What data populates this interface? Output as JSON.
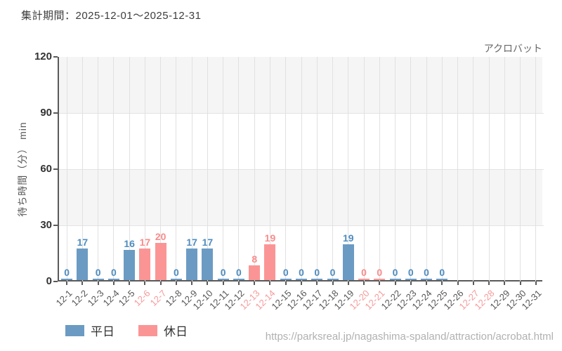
{
  "header": {
    "title": "集計期間：2025-12-01～2025-12-31",
    "attraction_label": "アクロバット"
  },
  "footer": {
    "url": "https://parksreal.jp/nagashima-spaland/attraction/acrobat.html"
  },
  "legend": {
    "items": [
      {
        "label": "平日",
        "type": "weekday"
      },
      {
        "label": "休日",
        "type": "holiday"
      }
    ]
  },
  "colors": {
    "weekday_bar": "#6b9bc3",
    "holiday_bar": "#fb9595",
    "weekday_value_label": "#4e8cbf",
    "holiday_value_label": "#f98b8b",
    "weekday_tick_label": "#555555",
    "holiday_tick_label": "#f59a9a",
    "axis": "#5a5a5a",
    "gridline": "#e1e1e1",
    "band_gray": "#f5f5f5"
  },
  "chart_data": {
    "type": "bar",
    "title": "集計期間：2025-12-01～2025-12-31",
    "subtitle": "アクロバット",
    "xlabel": "",
    "ylabel": "待ち時間（分） min",
    "ylim": [
      0,
      120
    ],
    "yticks": [
      0,
      30,
      60,
      90,
      120
    ],
    "grid": true,
    "legend_position": "bottom-left",
    "categories": [
      "12-1",
      "12-2",
      "12-3",
      "12-4",
      "12-5",
      "12-6",
      "12-7",
      "12-8",
      "12-9",
      "12-10",
      "12-11",
      "12-12",
      "12-13",
      "12-14",
      "12-15",
      "12-16",
      "12-17",
      "12-18",
      "12-19",
      "12-20",
      "12-21",
      "12-22",
      "12-23",
      "12-24",
      "12-25",
      "12-26",
      "12-27",
      "12-28",
      "12-29",
      "12-30",
      "12-31"
    ],
    "values": [
      0,
      17,
      0,
      0,
      16,
      17,
      20,
      0,
      17,
      17,
      0,
      0,
      8,
      19,
      0,
      0,
      0,
      0,
      19,
      0,
      0,
      0,
      0,
      0,
      0,
      null,
      null,
      null,
      null,
      null,
      null
    ],
    "day_types": [
      "weekday",
      "weekday",
      "weekday",
      "weekday",
      "weekday",
      "holiday",
      "holiday",
      "weekday",
      "weekday",
      "weekday",
      "weekday",
      "weekday",
      "holiday",
      "holiday",
      "weekday",
      "weekday",
      "weekday",
      "weekday",
      "weekday",
      "holiday",
      "holiday",
      "weekday",
      "weekday",
      "weekday",
      "weekday",
      "weekday",
      "holiday",
      "holiday",
      "weekday",
      "weekday",
      "weekday"
    ],
    "series": [
      {
        "name": "平日",
        "color": "#6b9bc3"
      },
      {
        "name": "休日",
        "color": "#fb9595"
      }
    ]
  }
}
